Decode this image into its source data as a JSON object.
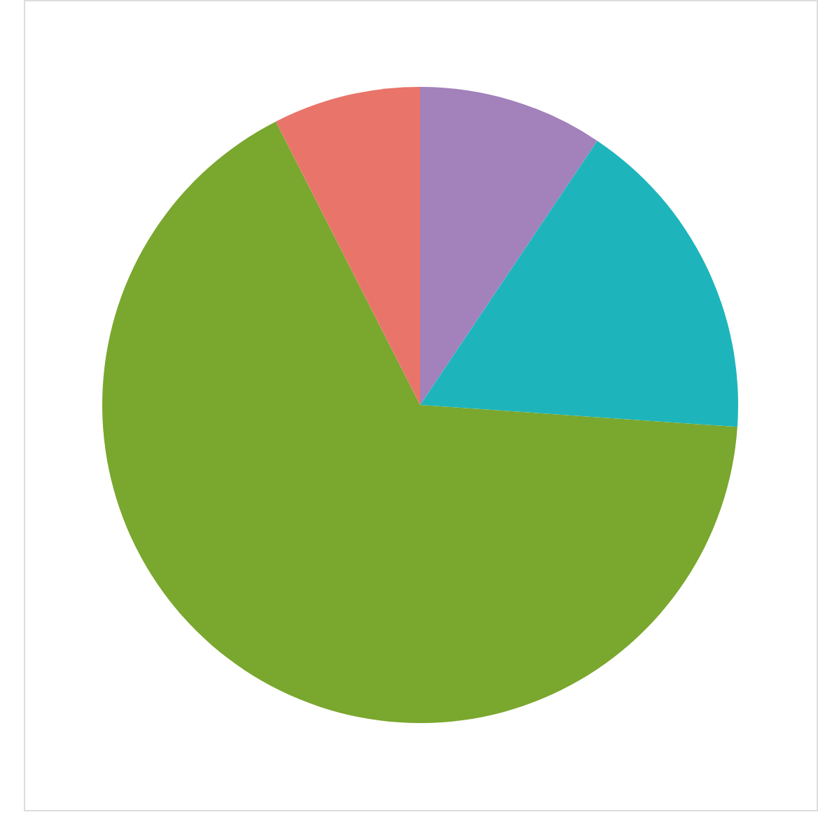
{
  "chart_data": {
    "type": "pie",
    "categories": [
      null,
      null,
      null,
      null
    ],
    "values": [
      9.4,
      16.7,
      66.4,
      7.5
    ],
    "colors": [
      "#a381bb",
      "#1db5bb",
      "#7aa72e",
      "#e9746a"
    ],
    "grid": true,
    "legend": false
  }
}
